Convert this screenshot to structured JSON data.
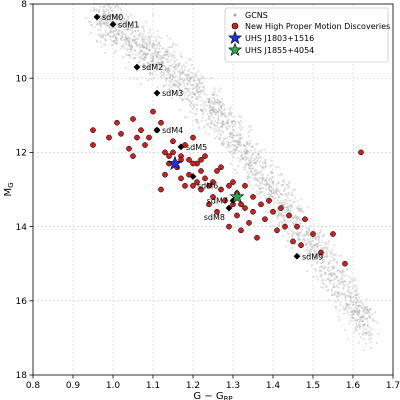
{
  "chart_data": {
    "type": "scatter",
    "xlabel": "G − G",
    "xlabel_sub": "RP",
    "ylabel": "M",
    "ylabel_sub": "G",
    "xlim": [
      0.8,
      1.7
    ],
    "ylim": [
      18,
      8
    ],
    "y_inverted": true,
    "grid": true,
    "legend_position": "top-right",
    "xticks": [
      0.8,
      0.9,
      1.0,
      1.1,
      1.2,
      1.3,
      1.4,
      1.5,
      1.6,
      1.7
    ],
    "xtick_labels": [
      "0.8",
      "0.9",
      "1.0",
      "1.1",
      "1.2",
      "1.3",
      "1.4",
      "1.5",
      "1.6",
      "1.7"
    ],
    "yticks": [
      8,
      10,
      12,
      14,
      16,
      18
    ],
    "ytick_labels": [
      "8",
      "10",
      "12",
      "14",
      "16",
      "18"
    ],
    "colors": {
      "background_points": "#a8a8a8",
      "discoveries": "#cc1f1f",
      "discoveries_edge": "#000000",
      "star_1": "#1f33e6",
      "star_2": "#2fa84a",
      "standards": "#000000"
    },
    "series": [
      {
        "name": "GCNS",
        "marker": "dot",
        "color": "#a8a8a8",
        "sequence_ridge": [
          [
            0.96,
            8.3
          ],
          [
            1.0,
            8.6
          ],
          [
            1.05,
            9.0
          ],
          [
            1.1,
            9.4
          ],
          [
            1.15,
            9.8
          ],
          [
            1.2,
            10.3
          ],
          [
            1.25,
            10.8
          ],
          [
            1.3,
            11.5
          ],
          [
            1.35,
            12.3
          ],
          [
            1.4,
            13.1
          ],
          [
            1.45,
            13.8
          ],
          [
            1.5,
            14.5
          ],
          [
            1.55,
            15.3
          ],
          [
            1.6,
            16.1
          ],
          [
            1.64,
            16.8
          ]
        ],
        "sequence_halfwidth": 0.6
      },
      {
        "name": "New High Proper Motion Discoveries",
        "marker": "circle",
        "color": "#cc1f1f",
        "points": [
          [
            0.95,
            11.4
          ],
          [
            0.95,
            11.8
          ],
          [
            0.99,
            11.6
          ],
          [
            1.01,
            11.2
          ],
          [
            1.02,
            11.5
          ],
          [
            1.05,
            11.1
          ],
          [
            1.06,
            11.6
          ],
          [
            1.04,
            11.9
          ],
          [
            1.05,
            12.1
          ],
          [
            1.07,
            11.4
          ],
          [
            1.08,
            11.8
          ],
          [
            1.09,
            11.6
          ],
          [
            1.1,
            10.9
          ],
          [
            1.11,
            11.4
          ],
          [
            1.12,
            11.2
          ],
          [
            1.13,
            12.0
          ],
          [
            1.14,
            12.3
          ],
          [
            1.13,
            12.6
          ],
          [
            1.12,
            13.0
          ],
          [
            1.15,
            11.7
          ],
          [
            1.15,
            12.0
          ],
          [
            1.16,
            12.4
          ],
          [
            1.17,
            12.7
          ],
          [
            1.17,
            12.1
          ],
          [
            1.18,
            11.8
          ],
          [
            1.18,
            12.9
          ],
          [
            1.19,
            12.2
          ],
          [
            1.19,
            12.6
          ],
          [
            1.2,
            12.9
          ],
          [
            1.2,
            11.6
          ],
          [
            1.21,
            12.3
          ],
          [
            1.21,
            12.8
          ],
          [
            1.22,
            12.5
          ],
          [
            1.22,
            13.0
          ],
          [
            1.23,
            12.1
          ],
          [
            1.23,
            12.7
          ],
          [
            1.24,
            13.4
          ],
          [
            1.25,
            12.8
          ],
          [
            1.25,
            13.2
          ],
          [
            1.26,
            12.5
          ],
          [
            1.26,
            13.6
          ],
          [
            1.27,
            13.0
          ],
          [
            1.27,
            12.4
          ],
          [
            1.28,
            13.3
          ],
          [
            1.29,
            12.9
          ],
          [
            1.29,
            14.0
          ],
          [
            1.3,
            13.4
          ],
          [
            1.3,
            12.8
          ],
          [
            1.31,
            13.7
          ],
          [
            1.31,
            13.1
          ],
          [
            1.32,
            13.4
          ],
          [
            1.32,
            14.1
          ],
          [
            1.33,
            12.9
          ],
          [
            1.33,
            13.5
          ],
          [
            1.34,
            13.9
          ],
          [
            1.35,
            13.2
          ],
          [
            1.35,
            13.6
          ],
          [
            1.36,
            14.3
          ],
          [
            1.37,
            13.4
          ],
          [
            1.38,
            13.8
          ],
          [
            1.39,
            13.3
          ],
          [
            1.4,
            13.6
          ],
          [
            1.41,
            14.1
          ],
          [
            1.42,
            13.5
          ],
          [
            1.43,
            14.0
          ],
          [
            1.44,
            13.7
          ],
          [
            1.45,
            14.4
          ],
          [
            1.46,
            14.0
          ],
          [
            1.47,
            14.5
          ],
          [
            1.48,
            13.8
          ],
          [
            1.5,
            14.2
          ],
          [
            1.52,
            14.7
          ],
          [
            1.55,
            14.2
          ],
          [
            1.58,
            15.0
          ],
          [
            1.62,
            12.0
          ],
          [
            1.2,
            12.3
          ],
          [
            1.22,
            12.2
          ],
          [
            1.17,
            12.2
          ],
          [
            1.14,
            12.1
          ],
          [
            1.24,
            12.9
          ]
        ]
      },
      {
        "name": "UHS J1803+1516",
        "marker": "star",
        "color": "#1f33e6",
        "points": [
          [
            1.155,
            12.3
          ]
        ]
      },
      {
        "name": "UHS J1855+4054",
        "marker": "star",
        "color": "#2fa84a",
        "points": [
          [
            1.31,
            13.2
          ]
        ]
      }
    ],
    "annotations": [
      {
        "label": "sdM0",
        "x": 0.96,
        "y": 8.35,
        "placement": "right"
      },
      {
        "label": "sdM1",
        "x": 1.0,
        "y": 8.55,
        "placement": "right"
      },
      {
        "label": "sdM2",
        "x": 1.06,
        "y": 9.7,
        "placement": "right"
      },
      {
        "label": "sdM3",
        "x": 1.11,
        "y": 10.4,
        "placement": "right"
      },
      {
        "label": "sdM4",
        "x": 1.11,
        "y": 11.4,
        "placement": "right"
      },
      {
        "label": "sdM5",
        "x": 1.17,
        "y": 11.85,
        "placement": "right"
      },
      {
        "label": "sdM6",
        "x": 1.2,
        "y": 12.65,
        "placement": "below"
      },
      {
        "label": "sdM7",
        "x": 1.3,
        "y": 13.3,
        "placement": "left"
      },
      {
        "label": "sdM8",
        "x": 1.29,
        "y": 13.5,
        "placement": "below-left"
      },
      {
        "label": "sdM9",
        "x": 1.46,
        "y": 14.8,
        "placement": "right"
      }
    ]
  }
}
